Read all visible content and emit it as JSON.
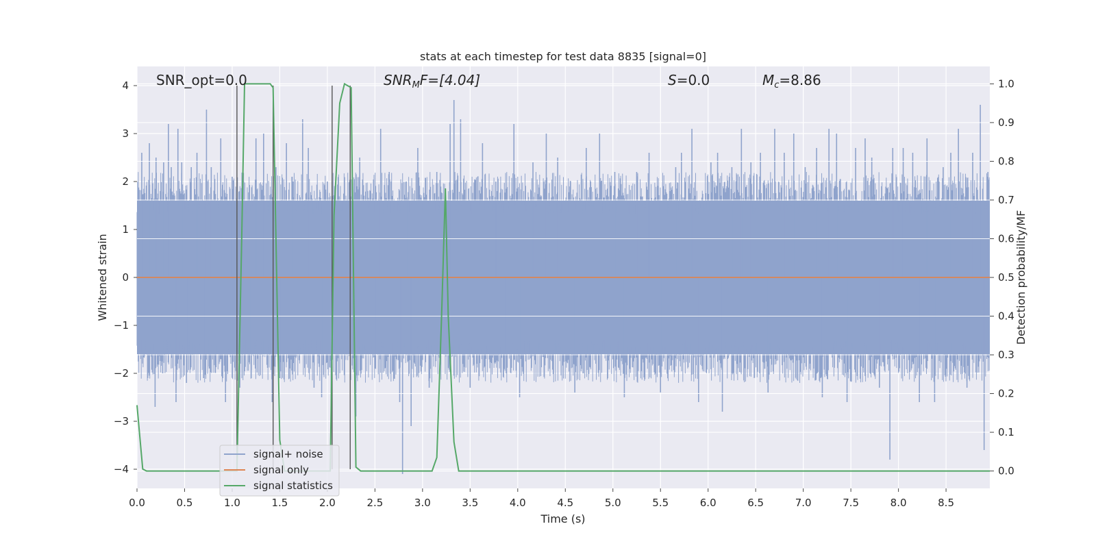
{
  "chart_data": {
    "type": "line",
    "title": "stats at each timestep for test data 8835 [signal=0]",
    "xlabel": "Time (s)",
    "ylabel": "Whitened strain",
    "y2label": "Detection probability/MF",
    "xlim": [
      0,
      8.96
    ],
    "ylim": [
      -4.4,
      4.4
    ],
    "y2lim": [
      -0.045,
      1.045
    ],
    "x_ticks": [
      "0.0",
      "0.5",
      "1.0",
      "1.5",
      "2.0",
      "2.5",
      "3.0",
      "3.5",
      "4.0",
      "4.5",
      "5.0",
      "5.5",
      "6.0",
      "6.5",
      "7.0",
      "7.5",
      "8.0",
      "8.5"
    ],
    "y_ticks": [
      "−4",
      "−3",
      "−2",
      "−1",
      "0",
      "1",
      "2",
      "3",
      "4"
    ],
    "y2_ticks": [
      "0.0",
      "0.1",
      "0.2",
      "0.3",
      "0.4",
      "0.5",
      "0.6",
      "0.7",
      "0.8",
      "0.9",
      "1.0"
    ],
    "grid": true,
    "legend_position": "lower-left",
    "annotations": {
      "snr_opt": "SNR_opt=0.0",
      "snr_mf_main": "SNR",
      "snr_mf_sub": "M",
      "snr_mf_rest": "F=[4.04]",
      "s_main": "S",
      "s_rest": "=0.0",
      "mc_main": "M",
      "mc_sub": "c",
      "mc_rest": "=8.86"
    },
    "series": [
      {
        "name": "signal+ noise",
        "color": "#8fa3cc",
        "description_note": "noise_band",
        "band_y_range": [
          -1.6,
          1.6
        ],
        "spikes": [
          [
            0.05,
            2.6
          ],
          [
            0.13,
            2.8
          ],
          [
            0.19,
            -2.7
          ],
          [
            0.2,
            2.5
          ],
          [
            0.27,
            -2.0
          ],
          [
            0.28,
            2.4
          ],
          [
            0.33,
            3.2
          ],
          [
            0.36,
            2.3
          ],
          [
            0.41,
            -2.6
          ],
          [
            0.43,
            3.1
          ],
          [
            0.47,
            2.4
          ],
          [
            0.52,
            -2.2
          ],
          [
            0.57,
            2.3
          ],
          [
            0.63,
            2.6
          ],
          [
            0.7,
            -2.1
          ],
          [
            0.73,
            3.5
          ],
          [
            0.76,
            -1.9
          ],
          [
            0.78,
            2.3
          ],
          [
            0.88,
            2.9
          ],
          [
            0.93,
            -2.6
          ],
          [
            1.0,
            2.1
          ],
          [
            1.08,
            -2.3
          ],
          [
            1.12,
            2.0
          ],
          [
            1.2,
            -2.1
          ],
          [
            1.25,
            2.9
          ],
          [
            1.33,
            3.0
          ],
          [
            1.42,
            -2.6
          ],
          [
            1.46,
            2.3
          ],
          [
            1.5,
            -2.1
          ],
          [
            1.57,
            2.8
          ],
          [
            1.64,
            2.0
          ],
          [
            1.74,
            3.3
          ],
          [
            1.8,
            2.7
          ],
          [
            1.86,
            -2.3
          ],
          [
            1.94,
            -2.5
          ],
          [
            2.0,
            2.0
          ],
          [
            2.04,
            -2.7
          ],
          [
            2.3,
            -2.9
          ],
          [
            2.34,
            2.5
          ],
          [
            2.5,
            -1.9
          ],
          [
            2.56,
            3.1
          ],
          [
            2.65,
            2.2
          ],
          [
            2.76,
            -2.6
          ],
          [
            2.79,
            -4.1
          ],
          [
            2.83,
            2.0
          ],
          [
            2.88,
            -3.1
          ],
          [
            2.95,
            2.7
          ],
          [
            3.07,
            -2.3
          ],
          [
            3.15,
            2.2
          ],
          [
            3.29,
            3.2
          ],
          [
            3.33,
            3.7
          ],
          [
            3.4,
            3.3
          ],
          [
            3.5,
            -2.3
          ],
          [
            3.63,
            2.8
          ],
          [
            3.77,
            2.0
          ],
          [
            3.88,
            -2.0
          ],
          [
            3.96,
            3.2
          ],
          [
            4.02,
            -2.5
          ],
          [
            4.16,
            2.4
          ],
          [
            4.3,
            3.0
          ],
          [
            4.42,
            2.5
          ],
          [
            4.6,
            -2.4
          ],
          [
            4.72,
            2.7
          ],
          [
            4.86,
            3.0
          ],
          [
            5.02,
            2.2
          ],
          [
            5.12,
            -2.5
          ],
          [
            5.25,
            2.2
          ],
          [
            5.38,
            2.6
          ],
          [
            5.5,
            -2.4
          ],
          [
            5.66,
            2.3
          ],
          [
            5.72,
            2.6
          ],
          [
            5.83,
            3.1
          ],
          [
            5.9,
            -2.6
          ],
          [
            6.03,
            2.4
          ],
          [
            6.1,
            2.6
          ],
          [
            6.15,
            -2.8
          ],
          [
            6.25,
            2.3
          ],
          [
            6.35,
            3.1
          ],
          [
            6.45,
            2.4
          ],
          [
            6.55,
            2.6
          ],
          [
            6.63,
            -2.4
          ],
          [
            6.7,
            3.1
          ],
          [
            6.8,
            2.6
          ],
          [
            6.9,
            3.0
          ],
          [
            7.02,
            2.3
          ],
          [
            7.14,
            2.7
          ],
          [
            7.2,
            -2.5
          ],
          [
            7.27,
            3.1
          ],
          [
            7.35,
            3.0
          ],
          [
            7.46,
            -2.6
          ],
          [
            7.55,
            2.7
          ],
          [
            7.65,
            2.9
          ],
          [
            7.72,
            2.5
          ],
          [
            7.8,
            -2.3
          ],
          [
            7.91,
            -3.8
          ],
          [
            7.94,
            2.7
          ],
          [
            8.05,
            2.7
          ],
          [
            8.15,
            2.6
          ],
          [
            8.22,
            -2.6
          ],
          [
            8.3,
            2.9
          ],
          [
            8.38,
            -2.6
          ],
          [
            8.47,
            2.3
          ],
          [
            8.55,
            2.6
          ],
          [
            8.63,
            3.1
          ],
          [
            8.72,
            -2.3
          ],
          [
            8.78,
            2.6
          ],
          [
            8.86,
            3.6
          ],
          [
            8.9,
            -3.6
          ],
          [
            8.94,
            2.2
          ]
        ]
      },
      {
        "name": "signal only",
        "color": "#dd8452",
        "x": [
          0,
          8.96
        ],
        "y": [
          0,
          0
        ]
      },
      {
        "name": "signal statistics",
        "color": "#55a868",
        "axis": "right",
        "x": [
          0.0,
          0.06,
          0.1,
          1.05,
          1.1,
          1.13,
          1.17,
          1.4,
          1.43,
          1.5,
          1.55,
          2.03,
          2.07,
          2.13,
          2.18,
          2.25,
          2.3,
          2.35,
          3.1,
          3.15,
          3.2,
          3.24,
          3.27,
          3.33,
          3.38,
          8.96
        ],
        "y": [
          0.17,
          0.005,
          0.0,
          0.0,
          0.6,
          1.0,
          1.0,
          1.0,
          0.99,
          0.08,
          0.0,
          0.0,
          0.66,
          0.95,
          1.0,
          0.99,
          0.01,
          0.0,
          0.0,
          0.035,
          0.4,
          0.73,
          0.4,
          0.075,
          0.0,
          0.0
        ]
      }
    ],
    "vertical_lines": [
      {
        "x": 1.05,
        "y": [
          -4.0,
          4.0
        ]
      },
      {
        "x": 1.43,
        "y": [
          -4.0,
          4.0
        ]
      },
      {
        "x": 2.05,
        "y": [
          -4.0,
          4.0
        ]
      },
      {
        "x": 2.24,
        "y": [
          -4.0,
          4.0
        ]
      }
    ]
  }
}
